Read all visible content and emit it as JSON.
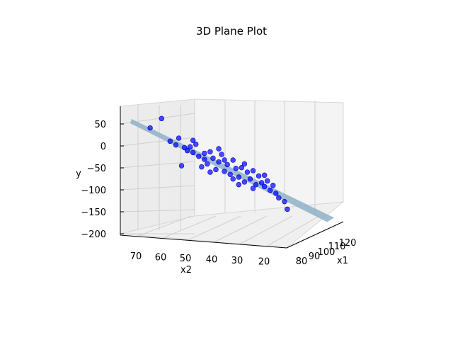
{
  "chart_data": {
    "type": "scatter",
    "title": "3D Plane Plot",
    "xlabel": "x1",
    "ylabel": "x2",
    "zlabel": "y",
    "x1_ticks": [
      "80",
      "90",
      "100",
      "110",
      "120"
    ],
    "x2_ticks": [
      "70",
      "60",
      "50",
      "40",
      "30",
      "20"
    ],
    "y_ticks": [
      "50",
      "0",
      "−50",
      "−100",
      "−150",
      "−200"
    ],
    "x1_range": [
      75,
      125
    ],
    "x2_range": [
      15,
      75
    ],
    "y_range": [
      -200,
      80
    ],
    "grid": true,
    "plane": {
      "y_at_low_end": 60,
      "y_at_high_end": -145,
      "color": "#8fb0c8"
    },
    "points": [
      {
        "x2": 67,
        "y": 55
      },
      {
        "x2": 63,
        "y": 80
      },
      {
        "x2": 60,
        "y": 20
      },
      {
        "x2": 58,
        "y": 10
      },
      {
        "x2": 57,
        "y": 28
      },
      {
        "x2": 55,
        "y": 3
      },
      {
        "x2": 54,
        "y": -5
      },
      {
        "x2": 53,
        "y": 5
      },
      {
        "x2": 52,
        "y": -10
      },
      {
        "x2": 51,
        "y": 12
      },
      {
        "x2": 50,
        "y": -20
      },
      {
        "x2": 49,
        "y": -48
      },
      {
        "x2": 48,
        "y": -28
      },
      {
        "x2": 47,
        "y": -40
      },
      {
        "x2": 46,
        "y": -8
      },
      {
        "x2": 45,
        "y": -25
      },
      {
        "x2": 44,
        "y": -55
      },
      {
        "x2": 43,
        "y": -35
      },
      {
        "x2": 42,
        "y": -15
      },
      {
        "x2": 41,
        "y": -60
      },
      {
        "x2": 40,
        "y": -42
      },
      {
        "x2": 39,
        "y": -68
      },
      {
        "x2": 38,
        "y": -30
      },
      {
        "x2": 37,
        "y": -52
      },
      {
        "x2": 36,
        "y": -75
      },
      {
        "x2": 35,
        "y": -50
      },
      {
        "x2": 34,
        "y": -88
      },
      {
        "x2": 33,
        "y": -62
      },
      {
        "x2": 32,
        "y": -80
      },
      {
        "x2": 31,
        "y": -58
      },
      {
        "x2": 30,
        "y": -95
      },
      {
        "x2": 29,
        "y": -72
      },
      {
        "x2": 28,
        "y": -90
      },
      {
        "x2": 27,
        "y": -100
      },
      {
        "x2": 26,
        "y": -85
      },
      {
        "x2": 25,
        "y": -110
      },
      {
        "x2": 23,
        "y": -118
      },
      {
        "x2": 22,
        "y": -130
      },
      {
        "x2": 20,
        "y": -140
      },
      {
        "x2": 19,
        "y": -160
      },
      {
        "x2": 56,
        "y": -45
      },
      {
        "x2": 52,
        "y": 22
      },
      {
        "x2": 46,
        "y": -62
      },
      {
        "x2": 43,
        "y": 0
      },
      {
        "x2": 38,
        "y": -80
      },
      {
        "x2": 34,
        "y": -40
      },
      {
        "x2": 31,
        "y": -105
      },
      {
        "x2": 27,
        "y": -70
      },
      {
        "x2": 48,
        "y": -12
      },
      {
        "x2": 41,
        "y": -30
      },
      {
        "x2": 36,
        "y": -95
      },
      {
        "x2": 24,
        "y": -97
      }
    ]
  }
}
